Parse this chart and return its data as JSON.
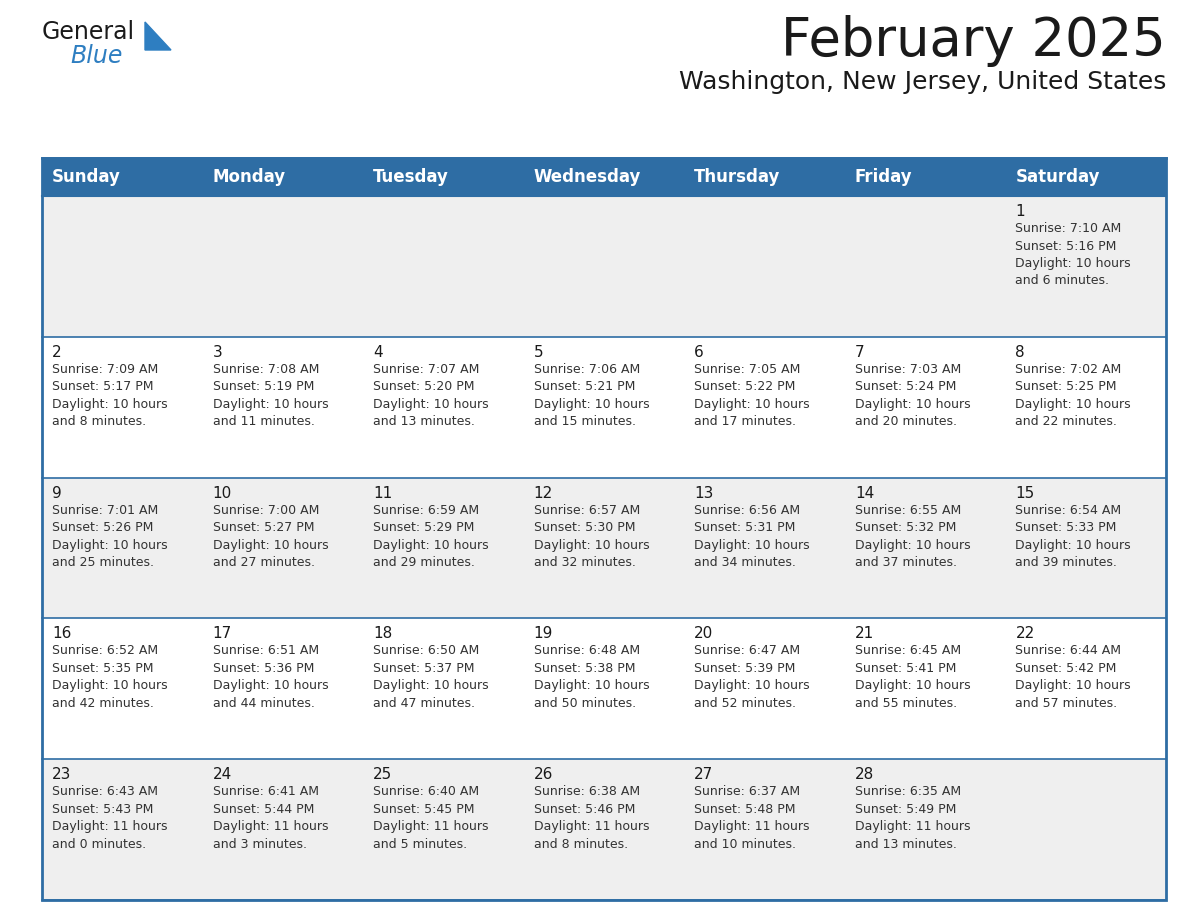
{
  "title": "February 2025",
  "subtitle": "Washington, New Jersey, United States",
  "header_bg": "#2e6da4",
  "header_text_color": "#ffffff",
  "row_bg_odd": "#efefef",
  "row_bg_even": "#ffffff",
  "border_color": "#2e6da4",
  "text_color": "#1a1a1a",
  "info_color": "#333333",
  "day_headers": [
    "Sunday",
    "Monday",
    "Tuesday",
    "Wednesday",
    "Thursday",
    "Friday",
    "Saturday"
  ],
  "weeks": [
    [
      {
        "day": "",
        "info": ""
      },
      {
        "day": "",
        "info": ""
      },
      {
        "day": "",
        "info": ""
      },
      {
        "day": "",
        "info": ""
      },
      {
        "day": "",
        "info": ""
      },
      {
        "day": "",
        "info": ""
      },
      {
        "day": "1",
        "info": "Sunrise: 7:10 AM\nSunset: 5:16 PM\nDaylight: 10 hours\nand 6 minutes."
      }
    ],
    [
      {
        "day": "2",
        "info": "Sunrise: 7:09 AM\nSunset: 5:17 PM\nDaylight: 10 hours\nand 8 minutes."
      },
      {
        "day": "3",
        "info": "Sunrise: 7:08 AM\nSunset: 5:19 PM\nDaylight: 10 hours\nand 11 minutes."
      },
      {
        "day": "4",
        "info": "Sunrise: 7:07 AM\nSunset: 5:20 PM\nDaylight: 10 hours\nand 13 minutes."
      },
      {
        "day": "5",
        "info": "Sunrise: 7:06 AM\nSunset: 5:21 PM\nDaylight: 10 hours\nand 15 minutes."
      },
      {
        "day": "6",
        "info": "Sunrise: 7:05 AM\nSunset: 5:22 PM\nDaylight: 10 hours\nand 17 minutes."
      },
      {
        "day": "7",
        "info": "Sunrise: 7:03 AM\nSunset: 5:24 PM\nDaylight: 10 hours\nand 20 minutes."
      },
      {
        "day": "8",
        "info": "Sunrise: 7:02 AM\nSunset: 5:25 PM\nDaylight: 10 hours\nand 22 minutes."
      }
    ],
    [
      {
        "day": "9",
        "info": "Sunrise: 7:01 AM\nSunset: 5:26 PM\nDaylight: 10 hours\nand 25 minutes."
      },
      {
        "day": "10",
        "info": "Sunrise: 7:00 AM\nSunset: 5:27 PM\nDaylight: 10 hours\nand 27 minutes."
      },
      {
        "day": "11",
        "info": "Sunrise: 6:59 AM\nSunset: 5:29 PM\nDaylight: 10 hours\nand 29 minutes."
      },
      {
        "day": "12",
        "info": "Sunrise: 6:57 AM\nSunset: 5:30 PM\nDaylight: 10 hours\nand 32 minutes."
      },
      {
        "day": "13",
        "info": "Sunrise: 6:56 AM\nSunset: 5:31 PM\nDaylight: 10 hours\nand 34 minutes."
      },
      {
        "day": "14",
        "info": "Sunrise: 6:55 AM\nSunset: 5:32 PM\nDaylight: 10 hours\nand 37 minutes."
      },
      {
        "day": "15",
        "info": "Sunrise: 6:54 AM\nSunset: 5:33 PM\nDaylight: 10 hours\nand 39 minutes."
      }
    ],
    [
      {
        "day": "16",
        "info": "Sunrise: 6:52 AM\nSunset: 5:35 PM\nDaylight: 10 hours\nand 42 minutes."
      },
      {
        "day": "17",
        "info": "Sunrise: 6:51 AM\nSunset: 5:36 PM\nDaylight: 10 hours\nand 44 minutes."
      },
      {
        "day": "18",
        "info": "Sunrise: 6:50 AM\nSunset: 5:37 PM\nDaylight: 10 hours\nand 47 minutes."
      },
      {
        "day": "19",
        "info": "Sunrise: 6:48 AM\nSunset: 5:38 PM\nDaylight: 10 hours\nand 50 minutes."
      },
      {
        "day": "20",
        "info": "Sunrise: 6:47 AM\nSunset: 5:39 PM\nDaylight: 10 hours\nand 52 minutes."
      },
      {
        "day": "21",
        "info": "Sunrise: 6:45 AM\nSunset: 5:41 PM\nDaylight: 10 hours\nand 55 minutes."
      },
      {
        "day": "22",
        "info": "Sunrise: 6:44 AM\nSunset: 5:42 PM\nDaylight: 10 hours\nand 57 minutes."
      }
    ],
    [
      {
        "day": "23",
        "info": "Sunrise: 6:43 AM\nSunset: 5:43 PM\nDaylight: 11 hours\nand 0 minutes."
      },
      {
        "day": "24",
        "info": "Sunrise: 6:41 AM\nSunset: 5:44 PM\nDaylight: 11 hours\nand 3 minutes."
      },
      {
        "day": "25",
        "info": "Sunrise: 6:40 AM\nSunset: 5:45 PM\nDaylight: 11 hours\nand 5 minutes."
      },
      {
        "day": "26",
        "info": "Sunrise: 6:38 AM\nSunset: 5:46 PM\nDaylight: 11 hours\nand 8 minutes."
      },
      {
        "day": "27",
        "info": "Sunrise: 6:37 AM\nSunset: 5:48 PM\nDaylight: 11 hours\nand 10 minutes."
      },
      {
        "day": "28",
        "info": "Sunrise: 6:35 AM\nSunset: 5:49 PM\nDaylight: 11 hours\nand 13 minutes."
      },
      {
        "day": "",
        "info": ""
      }
    ]
  ],
  "title_fontsize": 38,
  "subtitle_fontsize": 18,
  "header_fontsize": 12,
  "day_num_fontsize": 11,
  "info_fontsize": 9,
  "logo_general_color": "#1a1a1a",
  "logo_blue_color": "#2e7ec1",
  "logo_triangle_color": "#2e7ec1",
  "logo_fontsize": 17
}
